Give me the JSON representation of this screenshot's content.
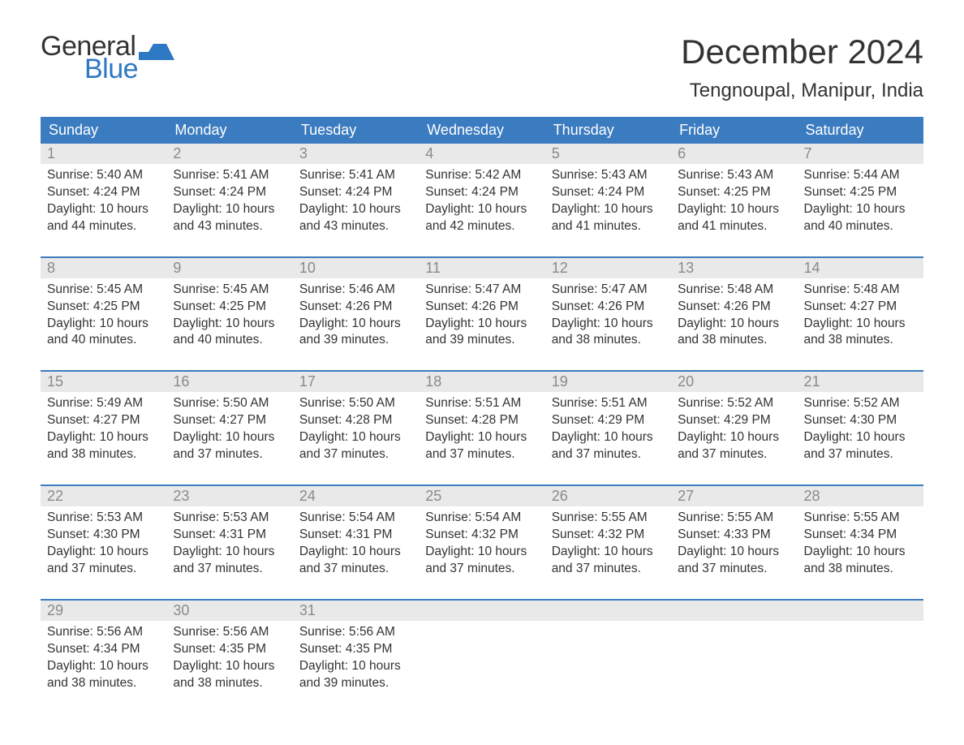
{
  "brand": {
    "word1": "General",
    "word2": "Blue",
    "flag_color": "#2f78c3",
    "text_color": "#333333",
    "accent_color": "#2f78c3"
  },
  "title": "December 2024",
  "location": "Tengnoupal, Manipur, India",
  "colors": {
    "header_bg": "#3b7bbf",
    "header_text": "#ffffff",
    "daynum_bg": "#e9e9e9",
    "daynum_text": "#8a8a8a",
    "body_text": "#333333",
    "rule": "#3b7bbf",
    "page_bg": "#ffffff"
  },
  "weekdays": [
    "Sunday",
    "Monday",
    "Tuesday",
    "Wednesday",
    "Thursday",
    "Friday",
    "Saturday"
  ],
  "weeks": [
    [
      {
        "n": "1",
        "sunrise": "5:40 AM",
        "sunset": "4:24 PM",
        "dl_h": "10",
        "dl_m": "44"
      },
      {
        "n": "2",
        "sunrise": "5:41 AM",
        "sunset": "4:24 PM",
        "dl_h": "10",
        "dl_m": "43"
      },
      {
        "n": "3",
        "sunrise": "5:41 AM",
        "sunset": "4:24 PM",
        "dl_h": "10",
        "dl_m": "43"
      },
      {
        "n": "4",
        "sunrise": "5:42 AM",
        "sunset": "4:24 PM",
        "dl_h": "10",
        "dl_m": "42"
      },
      {
        "n": "5",
        "sunrise": "5:43 AM",
        "sunset": "4:24 PM",
        "dl_h": "10",
        "dl_m": "41"
      },
      {
        "n": "6",
        "sunrise": "5:43 AM",
        "sunset": "4:25 PM",
        "dl_h": "10",
        "dl_m": "41"
      },
      {
        "n": "7",
        "sunrise": "5:44 AM",
        "sunset": "4:25 PM",
        "dl_h": "10",
        "dl_m": "40"
      }
    ],
    [
      {
        "n": "8",
        "sunrise": "5:45 AM",
        "sunset": "4:25 PM",
        "dl_h": "10",
        "dl_m": "40"
      },
      {
        "n": "9",
        "sunrise": "5:45 AM",
        "sunset": "4:25 PM",
        "dl_h": "10",
        "dl_m": "40"
      },
      {
        "n": "10",
        "sunrise": "5:46 AM",
        "sunset": "4:26 PM",
        "dl_h": "10",
        "dl_m": "39"
      },
      {
        "n": "11",
        "sunrise": "5:47 AM",
        "sunset": "4:26 PM",
        "dl_h": "10",
        "dl_m": "39"
      },
      {
        "n": "12",
        "sunrise": "5:47 AM",
        "sunset": "4:26 PM",
        "dl_h": "10",
        "dl_m": "38"
      },
      {
        "n": "13",
        "sunrise": "5:48 AM",
        "sunset": "4:26 PM",
        "dl_h": "10",
        "dl_m": "38"
      },
      {
        "n": "14",
        "sunrise": "5:48 AM",
        "sunset": "4:27 PM",
        "dl_h": "10",
        "dl_m": "38"
      }
    ],
    [
      {
        "n": "15",
        "sunrise": "5:49 AM",
        "sunset": "4:27 PM",
        "dl_h": "10",
        "dl_m": "38"
      },
      {
        "n": "16",
        "sunrise": "5:50 AM",
        "sunset": "4:27 PM",
        "dl_h": "10",
        "dl_m": "37"
      },
      {
        "n": "17",
        "sunrise": "5:50 AM",
        "sunset": "4:28 PM",
        "dl_h": "10",
        "dl_m": "37"
      },
      {
        "n": "18",
        "sunrise": "5:51 AM",
        "sunset": "4:28 PM",
        "dl_h": "10",
        "dl_m": "37"
      },
      {
        "n": "19",
        "sunrise": "5:51 AM",
        "sunset": "4:29 PM",
        "dl_h": "10",
        "dl_m": "37"
      },
      {
        "n": "20",
        "sunrise": "5:52 AM",
        "sunset": "4:29 PM",
        "dl_h": "10",
        "dl_m": "37"
      },
      {
        "n": "21",
        "sunrise": "5:52 AM",
        "sunset": "4:30 PM",
        "dl_h": "10",
        "dl_m": "37"
      }
    ],
    [
      {
        "n": "22",
        "sunrise": "5:53 AM",
        "sunset": "4:30 PM",
        "dl_h": "10",
        "dl_m": "37"
      },
      {
        "n": "23",
        "sunrise": "5:53 AM",
        "sunset": "4:31 PM",
        "dl_h": "10",
        "dl_m": "37"
      },
      {
        "n": "24",
        "sunrise": "5:54 AM",
        "sunset": "4:31 PM",
        "dl_h": "10",
        "dl_m": "37"
      },
      {
        "n": "25",
        "sunrise": "5:54 AM",
        "sunset": "4:32 PM",
        "dl_h": "10",
        "dl_m": "37"
      },
      {
        "n": "26",
        "sunrise": "5:55 AM",
        "sunset": "4:32 PM",
        "dl_h": "10",
        "dl_m": "37"
      },
      {
        "n": "27",
        "sunrise": "5:55 AM",
        "sunset": "4:33 PM",
        "dl_h": "10",
        "dl_m": "37"
      },
      {
        "n": "28",
        "sunrise": "5:55 AM",
        "sunset": "4:34 PM",
        "dl_h": "10",
        "dl_m": "38"
      }
    ],
    [
      {
        "n": "29",
        "sunrise": "5:56 AM",
        "sunset": "4:34 PM",
        "dl_h": "10",
        "dl_m": "38"
      },
      {
        "n": "30",
        "sunrise": "5:56 AM",
        "sunset": "4:35 PM",
        "dl_h": "10",
        "dl_m": "38"
      },
      {
        "n": "31",
        "sunrise": "5:56 AM",
        "sunset": "4:35 PM",
        "dl_h": "10",
        "dl_m": "39"
      },
      null,
      null,
      null,
      null
    ]
  ],
  "labels": {
    "sunrise_prefix": "Sunrise: ",
    "sunset_prefix": "Sunset: ",
    "daylight_prefix": "Daylight: ",
    "hours_word": " hours",
    "and_word": "and ",
    "minutes_word": " minutes."
  }
}
